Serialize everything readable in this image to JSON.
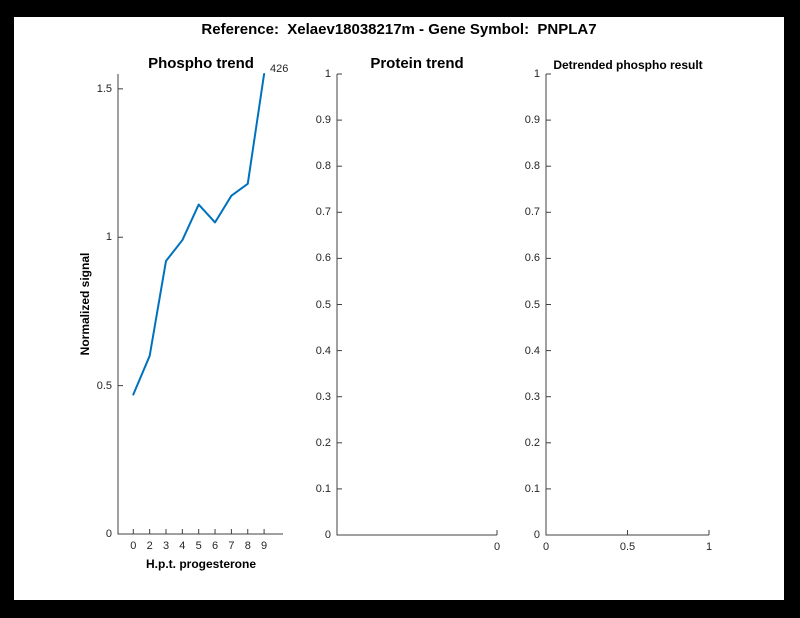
{
  "figure_title": "Reference:  Xelaev18038217m - Gene Symbol:  PNPLA7",
  "colors": {
    "line_blue": "#0072BD",
    "axis_line": "#404040",
    "tick_text": "#262626",
    "page_background": "#000000",
    "figure_background": "#ffffff"
  },
  "chart_data": [
    {
      "id": "phospho",
      "type": "line",
      "title": "Phospho trend",
      "xlabel": "H.p.t. progesterone",
      "ylabel": "Normalized signal",
      "categories": [
        "0",
        "2",
        "3",
        "4",
        "5",
        "6",
        "7",
        "8",
        "9"
      ],
      "values": [
        0.47,
        0.6,
        0.92,
        0.99,
        1.11,
        1.05,
        1.14,
        1.18,
        1.55
      ],
      "end_label": "426",
      "y_ticks": [
        0,
        0.5,
        1,
        1.5
      ],
      "y_tick_labels": [
        "0",
        "0.5",
        "1",
        "1.5"
      ],
      "ylim": [
        0,
        1.55
      ],
      "grid": "off",
      "legend": "none",
      "line_color": "#0072BD"
    },
    {
      "id": "protein",
      "type": "line",
      "title": "Protein trend",
      "xlabel": "",
      "ylabel": "",
      "categories": [
        "0"
      ],
      "values": [],
      "y_ticks": [
        0,
        0.1,
        0.2,
        0.3,
        0.4,
        0.5,
        0.6,
        0.7,
        0.8,
        0.9,
        1
      ],
      "y_tick_labels": [
        "0",
        "0.1",
        "0.2",
        "0.3",
        "0.4",
        "0.5",
        "0.6",
        "0.7",
        "0.8",
        "0.9",
        "1"
      ],
      "ylim": [
        0,
        1
      ],
      "grid": "off",
      "legend": "none",
      "note": "empty axes - no data plotted"
    },
    {
      "id": "detrended",
      "type": "line",
      "title": "Detrended phospho result",
      "xlabel": "",
      "ylabel": "",
      "categories": [
        "0",
        "0.5",
        "1"
      ],
      "values": [],
      "y_ticks": [
        0,
        0.1,
        0.2,
        0.3,
        0.4,
        0.5,
        0.6,
        0.7,
        0.8,
        0.9,
        1
      ],
      "y_tick_labels": [
        "0",
        "0.1",
        "0.2",
        "0.3",
        "0.4",
        "0.5",
        "0.6",
        "0.7",
        "0.8",
        "0.9",
        "1"
      ],
      "ylim": [
        0,
        1
      ],
      "xlim": [
        0,
        1
      ],
      "grid": "off",
      "legend": "none",
      "note": "empty axes - no data plotted"
    }
  ]
}
